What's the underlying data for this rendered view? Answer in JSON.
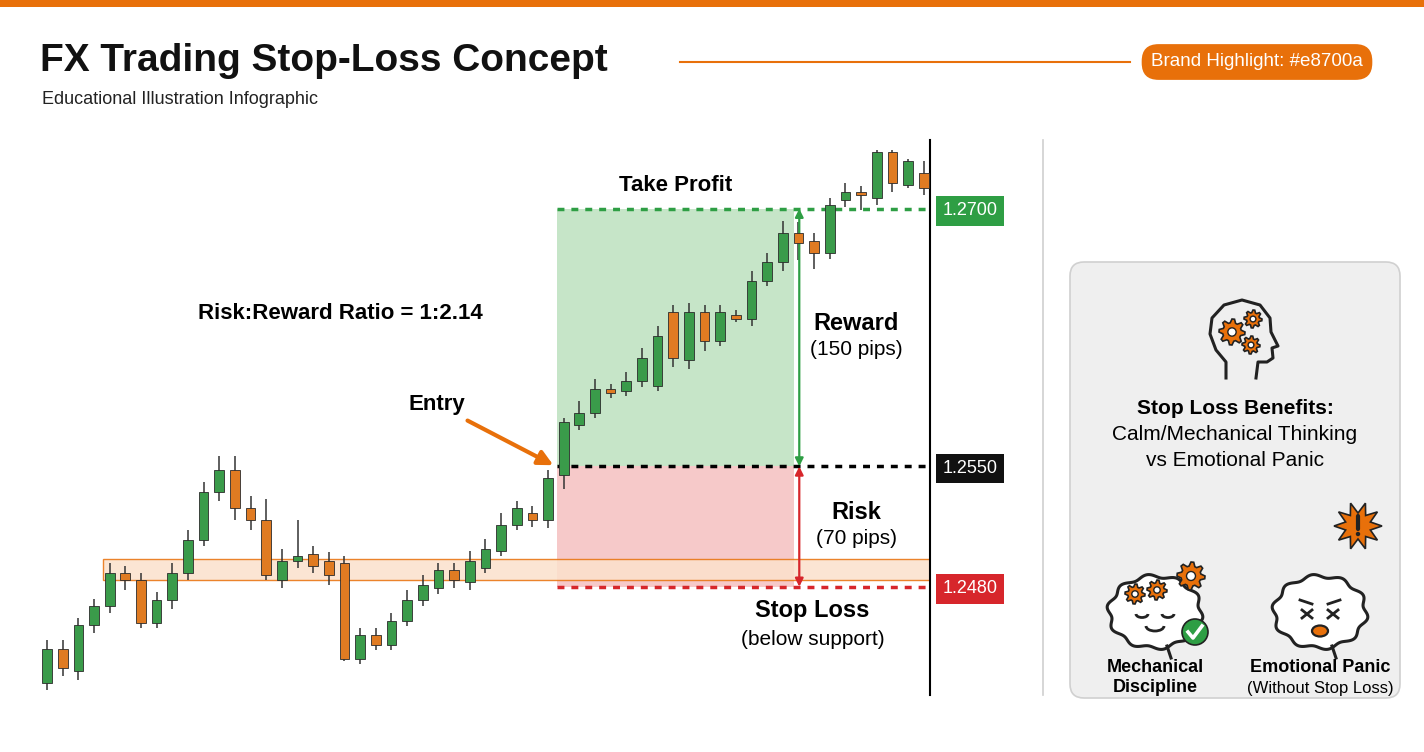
{
  "header": {
    "title": "FX Trading Stop-Loss Concept",
    "subtitle": "Educational Illustration Infographic",
    "badge": "Brand Highlight: #e8700a",
    "color": "#e8700a"
  },
  "chart_data": {
    "type": "candlestick",
    "categories": [
      null,
      null,
      null,
      null,
      null,
      null,
      null,
      null,
      null,
      null,
      null,
      null,
      null,
      null,
      null,
      null,
      null,
      null,
      null,
      null,
      null,
      null,
      null,
      null,
      null,
      null,
      null,
      null,
      null,
      null,
      null,
      null,
      null,
      null,
      null,
      null,
      null,
      null,
      null,
      null,
      null,
      null,
      null,
      null,
      null,
      null,
      null,
      null,
      null,
      null,
      null,
      null,
      null,
      null,
      null,
      null,
      null
    ],
    "open": [
      1.2424,
      1.2444,
      1.2431,
      1.2458,
      1.2469,
      1.2488,
      1.2484,
      1.2459,
      1.2472,
      1.2488,
      1.2507,
      1.2535,
      1.2548,
      1.2526,
      1.2519,
      1.2484,
      1.2495,
      1.2499,
      1.2495,
      1.2494,
      1.2438,
      1.2452,
      1.2446,
      1.246,
      1.2472,
      1.2479,
      1.249,
      1.2483,
      1.2491,
      1.2501,
      1.2516,
      1.2523,
      1.2519,
      1.2545,
      1.2574,
      1.2581,
      1.2595,
      1.2594,
      1.26,
      1.2597,
      1.264,
      1.2612,
      1.264,
      1.2623,
      1.2638,
      1.2636,
      1.2658,
      1.2669,
      1.2686,
      1.2681,
      1.2674,
      1.2705,
      1.271,
      1.2706,
      1.2733,
      1.2714,
      1.2721
    ],
    "high": [
      1.2449,
      1.2449,
      1.2462,
      1.2473,
      1.2494,
      1.2492,
      1.2488,
      1.2477,
      1.2494,
      1.2513,
      1.2541,
      1.2556,
      1.2556,
      1.2533,
      1.2531,
      1.2502,
      1.2519,
      1.2504,
      1.25,
      1.2498,
      1.2456,
      1.2456,
      1.2465,
      1.2478,
      1.2487,
      1.2494,
      1.2494,
      1.2501,
      1.2508,
      1.2523,
      1.253,
      1.2527,
      1.2548,
      1.2578,
      1.2588,
      1.2601,
      1.2598,
      1.2605,
      1.2619,
      1.2632,
      1.2644,
      1.2645,
      1.2644,
      1.2644,
      1.2641,
      1.2664,
      1.2674,
      1.2693,
      1.2692,
      1.2686,
      1.2706,
      1.2715,
      1.2713,
      1.2734,
      1.2734,
      1.2729,
      1.2728
    ],
    "low": [
      1.242,
      1.2428,
      1.2426,
      1.2453,
      1.2465,
      1.2478,
      1.2456,
      1.2456,
      1.2467,
      1.2484,
      1.2504,
      1.253,
      1.2519,
      1.2513,
      1.2484,
      1.2479,
      1.2491,
      1.2488,
      1.2481,
      1.2437,
      1.2435,
      1.2443,
      1.2443,
      1.2457,
      1.2469,
      1.2476,
      1.2479,
      1.2478,
      1.2488,
      1.2498,
      1.2513,
      1.2515,
      1.2514,
      1.2537,
      1.2571,
      1.2578,
      1.259,
      1.2591,
      1.2596,
      1.2594,
      1.2608,
      1.2607,
      1.2617,
      1.262,
      1.2634,
      1.2632,
      1.2655,
      1.2664,
      1.267,
      1.2665,
      1.2671,
      1.2701,
      1.2699,
      1.2702,
      1.271,
      1.2712,
      1.2708
    ],
    "close": [
      1.2444,
      1.2433,
      1.2458,
      1.2469,
      1.2488,
      1.2484,
      1.2459,
      1.2472,
      1.2488,
      1.2507,
      1.2535,
      1.2548,
      1.2526,
      1.2519,
      1.2487,
      1.2495,
      1.2498,
      1.2492,
      1.2487,
      1.2438,
      1.2452,
      1.2446,
      1.246,
      1.2472,
      1.2481,
      1.249,
      1.2484,
      1.2495,
      1.2502,
      1.2516,
      1.2526,
      1.2519,
      1.2543,
      1.2576,
      1.2581,
      1.2595,
      1.2593,
      1.26,
      1.2613,
      1.2626,
      1.2613,
      1.264,
      1.2623,
      1.264,
      1.2636,
      1.2658,
      1.2669,
      1.2686,
      1.268,
      1.2674,
      1.2702,
      1.271,
      1.2708,
      1.2733,
      1.2715,
      1.2728,
      1.2712
    ],
    "ylim": [
      1.2417,
      1.274
    ],
    "yticks": [
      {
        "value": 1.248,
        "label": "1.2480"
      },
      {
        "value": 1.255,
        "label": "1.2550"
      },
      {
        "value": 1.27,
        "label": "1.2700"
      }
    ],
    "tick_labels": "y",
    "support_zone": [
      1.2484,
      1.2496
    ],
    "annotations": {
      "take_profit": {
        "label": "Take Profit",
        "value": 1.27
      },
      "entry": {
        "label": "Entry",
        "value": 1.255
      },
      "stop_loss": {
        "label": "Stop Loss",
        "note": "(below support)",
        "value": 1.248
      },
      "reward": {
        "label": "Reward",
        "note": "(150 pips)"
      },
      "risk": {
        "label": "Risk",
        "note": "(70 pips)"
      },
      "ratio": "Risk:Reward Ratio = 1:2.14"
    }
  },
  "panel": {
    "heading": "Stop Loss Benefits:",
    "lines": [
      "Calm/Mechanical Thinking",
      "vs Emotional Panic"
    ],
    "left_caption": [
      "Mechanical",
      "Discipline"
    ],
    "right_caption": [
      "Emotional Panic",
      "(Without Stop Loss)"
    ]
  }
}
